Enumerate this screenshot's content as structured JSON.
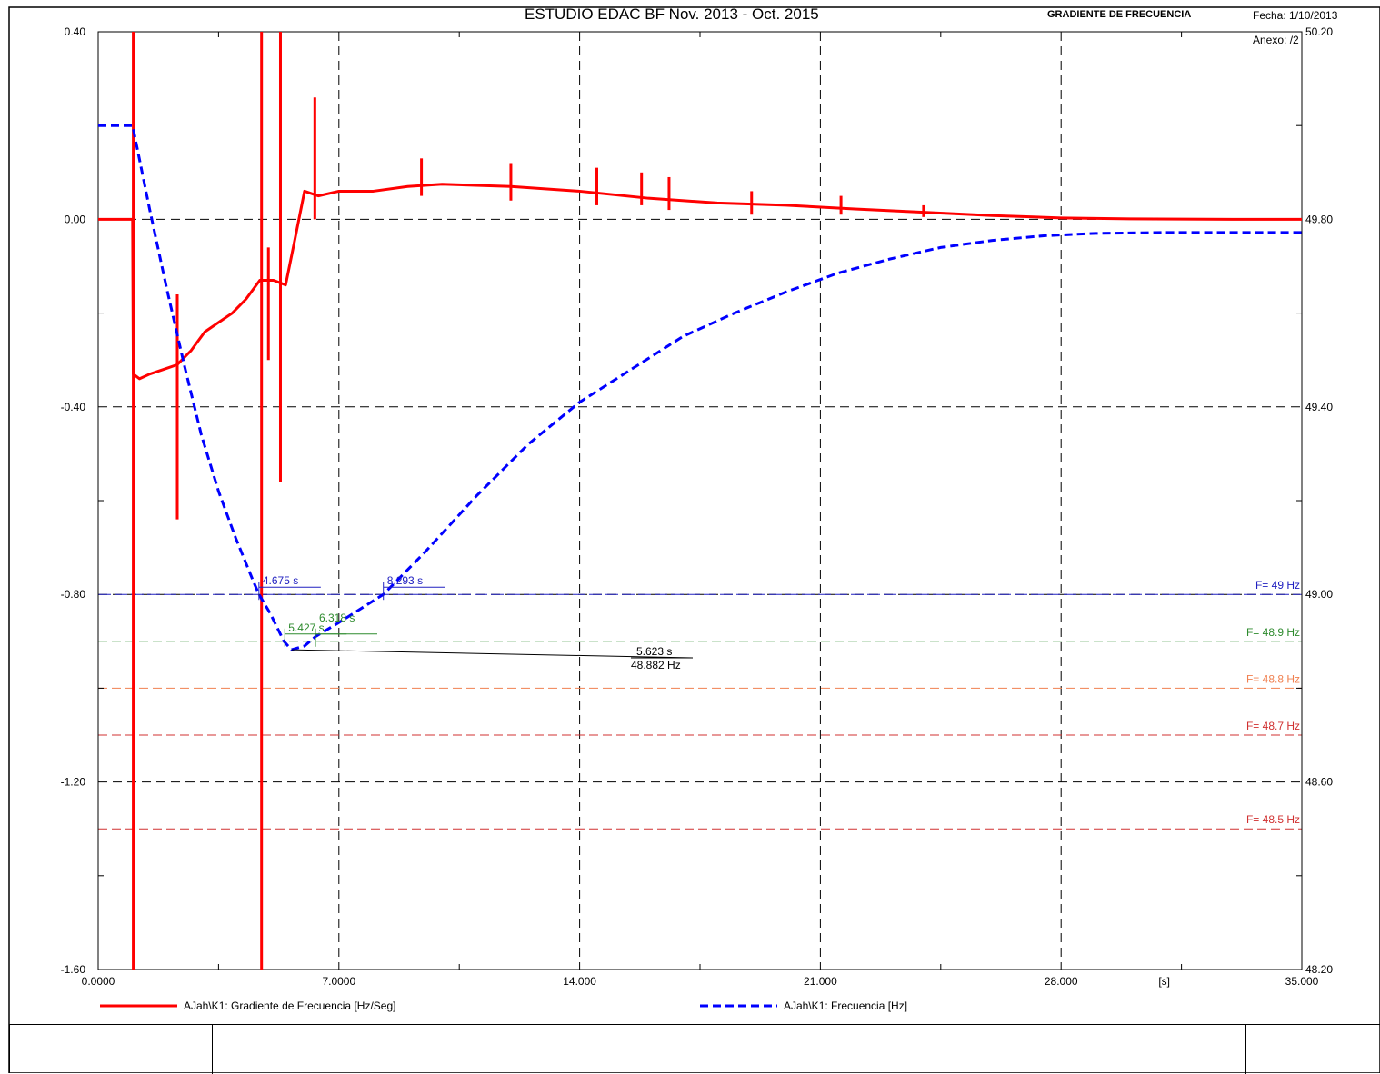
{
  "chart_data": {
    "type": "line",
    "title": "",
    "xlabel": "[s]",
    "xlim": [
      0,
      35
    ],
    "ylim_left": [
      -1.6,
      0.4
    ],
    "ylim_right": [
      48.2,
      50.2
    ],
    "x_ticks": [
      {
        "value": 0,
        "label": "0.0000"
      },
      {
        "value": 7,
        "label": "7.0000"
      },
      {
        "value": 14,
        "label": "14.000"
      },
      {
        "value": 21,
        "label": "21.000"
      },
      {
        "value": 28,
        "label": "28.000"
      },
      {
        "value": 35,
        "label": "35.000"
      }
    ],
    "y_left_ticks": [
      {
        "value": 0.4,
        "label": "0.40"
      },
      {
        "value": 0.0,
        "label": "0.00"
      },
      {
        "value": -0.4,
        "label": "-0.40"
      },
      {
        "value": -0.8,
        "label": "-0.80"
      },
      {
        "value": -1.2,
        "label": "-1.20"
      },
      {
        "value": -1.6,
        "label": "-1.60"
      }
    ],
    "y_right_ticks": [
      {
        "value": 50.2,
        "label": "50.20"
      },
      {
        "value": 49.8,
        "label": "49.80"
      },
      {
        "value": 49.4,
        "label": "49.40"
      },
      {
        "value": 49.0,
        "label": "49.00"
      },
      {
        "value": 48.6,
        "label": "48.60"
      },
      {
        "value": 48.2,
        "label": "48.20"
      }
    ],
    "grid": true,
    "legend_position": "bottom",
    "series": [
      {
        "name": "AJah\\K1: Gradiente de Frecuencia [Hz/Seg]",
        "axis": "left",
        "color": "#ff0000",
        "style": "solid",
        "x": [
          0,
          1.0,
          1.02,
          1.2,
          1.5,
          1.9,
          2.3,
          2.7,
          3.1,
          3.5,
          3.9,
          4.3,
          4.7,
          5.1,
          5.45,
          5.7,
          6.0,
          6.4,
          7.0,
          8.0,
          9.0,
          10.0,
          12.0,
          14.0,
          16.0,
          18.0,
          20.0,
          22.0,
          24.0,
          26.0,
          28.0,
          30.0,
          33.0,
          35.0
        ],
        "y": [
          0.0,
          0.0,
          -0.33,
          -0.34,
          -0.33,
          -0.32,
          -0.31,
          -0.28,
          -0.24,
          -0.22,
          -0.2,
          -0.17,
          -0.13,
          -0.13,
          -0.14,
          -0.05,
          0.06,
          0.05,
          0.06,
          0.06,
          0.07,
          0.075,
          0.07,
          0.06,
          0.045,
          0.035,
          0.03,
          0.022,
          0.015,
          0.008,
          0.003,
          0.001,
          0.0,
          0.0
        ],
        "spikes": [
          {
            "x": 1.02,
            "y1": -1.6,
            "y2": 0.4
          },
          {
            "x": 2.3,
            "y1": -0.64,
            "y2": -0.16
          },
          {
            "x": 4.75,
            "y1": -1.6,
            "y2": 0.4
          },
          {
            "x": 4.95,
            "y1": -0.3,
            "y2": -0.06
          },
          {
            "x": 5.3,
            "y1": -0.56,
            "y2": 0.4
          },
          {
            "x": 6.3,
            "y1": 0.0,
            "y2": 0.26
          },
          {
            "x": 9.4,
            "y1": 0.05,
            "y2": 0.13
          },
          {
            "x": 12.0,
            "y1": 0.04,
            "y2": 0.12
          },
          {
            "x": 14.5,
            "y1": 0.03,
            "y2": 0.11
          },
          {
            "x": 15.8,
            "y1": 0.03,
            "y2": 0.1
          },
          {
            "x": 16.6,
            "y1": 0.02,
            "y2": 0.09
          },
          {
            "x": 19.0,
            "y1": 0.01,
            "y2": 0.06
          },
          {
            "x": 21.6,
            "y1": 0.01,
            "y2": 0.05
          },
          {
            "x": 24.0,
            "y1": 0.005,
            "y2": 0.03
          }
        ]
      },
      {
        "name": "AJah\\K1: Frecuencia [Hz]",
        "axis": "right",
        "color": "#0000ff",
        "style": "dashed",
        "x": [
          0,
          1.0,
          1.5,
          2.0,
          2.5,
          3.0,
          3.5,
          4.0,
          4.5,
          4.675,
          5.0,
          5.4,
          5.62,
          6.0,
          6.318,
          7.0,
          8.293,
          9.5,
          11.0,
          12.5,
          14.0,
          15.5,
          17.0,
          18.5,
          20.0,
          21.5,
          23.0,
          24.5,
          26.0,
          27.5,
          29.0,
          31.0,
          33.0,
          35.0
        ],
        "y": [
          50.0,
          50.0,
          49.82,
          49.65,
          49.49,
          49.34,
          49.22,
          49.12,
          49.03,
          49.0,
          48.96,
          48.9,
          48.882,
          48.89,
          48.91,
          48.94,
          49.0,
          49.09,
          49.21,
          49.32,
          49.41,
          49.48,
          49.55,
          49.6,
          49.645,
          49.685,
          49.715,
          49.74,
          49.755,
          49.765,
          49.77,
          49.772,
          49.772,
          49.772
        ]
      }
    ],
    "reference_lines": [
      {
        "value": 49.0,
        "label": "F= 49 Hz",
        "color": "#2020c0"
      },
      {
        "value": 48.9,
        "label": "F= 48.9 Hz",
        "color": "#2e8b2e"
      },
      {
        "value": 48.8,
        "label": "F= 48.8 Hz",
        "color": "#f08050"
      },
      {
        "value": 48.7,
        "label": "F= 48.7 Hz",
        "color": "#d03030"
      },
      {
        "value": 48.5,
        "label": "F= 48.5 Hz",
        "color": "#d03030"
      }
    ],
    "annotations": [
      {
        "label": "4.675 s",
        "x": 4.675,
        "freq": 49.0,
        "color": "#2020c0"
      },
      {
        "label": "8.293 s",
        "x": 8.293,
        "freq": 49.0,
        "color": "#2020c0"
      },
      {
        "label": "5.427 s",
        "x": 5.427,
        "freq": 48.9,
        "color": "#2e8b2e"
      },
      {
        "label": "6.318 s",
        "x": 6.318,
        "freq": 48.9,
        "color": "#2e8b2e"
      },
      {
        "label": "5.623 s",
        "label2": "48.882 Hz",
        "x": 5.623,
        "freq": 48.882,
        "color": "#000000"
      }
    ]
  },
  "footer": {
    "title": "ESTUDIO EDAC BF Nov. 2013 - Oct. 2015",
    "subtitle": "GRADIENTE DE FRECUENCIA",
    "date": "Fecha: 1/10/2013",
    "annex": "Anexo:  /2"
  }
}
